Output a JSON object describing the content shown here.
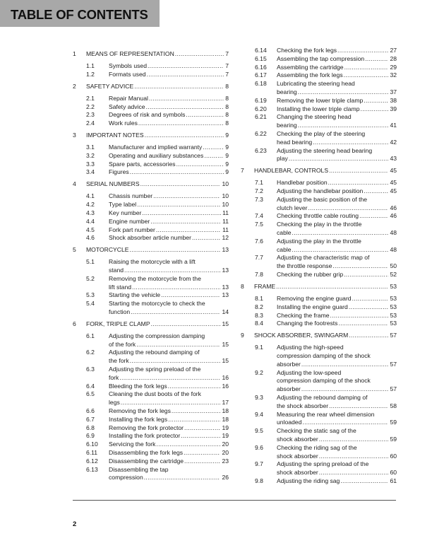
{
  "header": {
    "title": "TABLE OF CONTENTS",
    "background": "#a8a8a8"
  },
  "columns": [
    [
      {
        "level": "ch",
        "num": "1",
        "lines": [
          "MEANS OF REPRESENTATION"
        ],
        "page": "7"
      },
      {
        "level": "sec",
        "num": "1.1",
        "lines": [
          "Symbols used"
        ],
        "page": "7"
      },
      {
        "level": "sec",
        "num": "1.2",
        "lines": [
          "Formats used"
        ],
        "page": "7"
      },
      {
        "level": "ch",
        "num": "2",
        "lines": [
          "SAFETY ADVICE"
        ],
        "page": "8"
      },
      {
        "level": "sec",
        "num": "2.1",
        "lines": [
          "Repair Manual"
        ],
        "page": "8"
      },
      {
        "level": "sec",
        "num": "2.2",
        "lines": [
          "Safety advice"
        ],
        "page": "8"
      },
      {
        "level": "sec",
        "num": "2.3",
        "lines": [
          "Degrees of risk and symbols"
        ],
        "page": "8"
      },
      {
        "level": "sec",
        "num": "2.4",
        "lines": [
          "Work rules"
        ],
        "page": "8"
      },
      {
        "level": "ch",
        "num": "3",
        "lines": [
          "IMPORTANT NOTES"
        ],
        "page": "9"
      },
      {
        "level": "sec",
        "num": "3.1",
        "lines": [
          "Manufacturer and implied warranty"
        ],
        "page": "9"
      },
      {
        "level": "sec",
        "num": "3.2",
        "lines": [
          "Operating and auxiliary substances"
        ],
        "page": "9"
      },
      {
        "level": "sec",
        "num": "3.3",
        "lines": [
          "Spare parts, accessories"
        ],
        "page": "9"
      },
      {
        "level": "sec",
        "num": "3.4",
        "lines": [
          "Figures"
        ],
        "page": "9"
      },
      {
        "level": "ch",
        "num": "4",
        "lines": [
          "SERIAL NUMBERS"
        ],
        "page": "10"
      },
      {
        "level": "sec",
        "num": "4.1",
        "lines": [
          "Chassis number"
        ],
        "page": "10"
      },
      {
        "level": "sec",
        "num": "4.2",
        "lines": [
          "Type label"
        ],
        "page": "10"
      },
      {
        "level": "sec",
        "num": "4.3",
        "lines": [
          "Key number"
        ],
        "page": "11"
      },
      {
        "level": "sec",
        "num": "4.4",
        "lines": [
          "Engine number"
        ],
        "page": "11"
      },
      {
        "level": "sec",
        "num": "4.5",
        "lines": [
          "Fork part number"
        ],
        "page": "11"
      },
      {
        "level": "sec",
        "num": "4.6",
        "lines": [
          "Shock absorber article number"
        ],
        "page": "12"
      },
      {
        "level": "ch",
        "num": "5",
        "lines": [
          "MOTORCYCLE"
        ],
        "page": "13"
      },
      {
        "level": "sec",
        "num": "5.1",
        "lines": [
          "Raising the motorcycle with a lift",
          "stand"
        ],
        "page": "13"
      },
      {
        "level": "sec",
        "num": "5.2",
        "lines": [
          "Removing the motorcycle from the",
          "lift stand"
        ],
        "page": "13"
      },
      {
        "level": "sec",
        "num": "5.3",
        "lines": [
          "Starting the vehicle"
        ],
        "page": "13"
      },
      {
        "level": "sec",
        "num": "5.4",
        "lines": [
          "Starting the motorcycle to check the",
          "function"
        ],
        "page": "14"
      },
      {
        "level": "ch",
        "num": "6",
        "lines": [
          "FORK, TRIPLE CLAMP"
        ],
        "page": "15"
      },
      {
        "level": "sec",
        "num": "6.1",
        "lines": [
          "Adjusting the compression damping",
          "of the fork"
        ],
        "page": "15"
      },
      {
        "level": "sec",
        "num": "6.2",
        "lines": [
          "Adjusting the rebound damping of",
          "the fork"
        ],
        "page": "15"
      },
      {
        "level": "sec",
        "num": "6.3",
        "lines": [
          "Adjusting the spring preload of the",
          "fork"
        ],
        "page": "16"
      },
      {
        "level": "sec",
        "num": "6.4",
        "lines": [
          "Bleeding the fork legs"
        ],
        "page": "16"
      },
      {
        "level": "sec",
        "num": "6.5",
        "lines": [
          "Cleaning the dust boots of the fork",
          "legs"
        ],
        "page": "17"
      },
      {
        "level": "sec",
        "num": "6.6",
        "lines": [
          "Removing the fork legs"
        ],
        "page": "18"
      },
      {
        "level": "sec",
        "num": "6.7",
        "lines": [
          "Installing the fork legs"
        ],
        "page": "18"
      },
      {
        "level": "sec",
        "num": "6.8",
        "lines": [
          "Removing the fork protector"
        ],
        "page": "19"
      },
      {
        "level": "sec",
        "num": "6.9",
        "lines": [
          "Installing the fork protector"
        ],
        "page": "19"
      },
      {
        "level": "sec",
        "num": "6.10",
        "lines": [
          "Servicing the fork"
        ],
        "page": "20"
      },
      {
        "level": "sec",
        "num": "6.11",
        "lines": [
          "Disassembling the fork legs"
        ],
        "page": "20"
      },
      {
        "level": "sec",
        "num": "6.12",
        "lines": [
          "Disassembling the cartridge"
        ],
        "page": "23"
      },
      {
        "level": "sec",
        "num": "6.13",
        "lines": [
          "Disassembling the tap",
          "compression"
        ],
        "page": "26"
      }
    ],
    [
      {
        "level": "sec",
        "num": "6.14",
        "lines": [
          "Checking the fork legs"
        ],
        "page": "27"
      },
      {
        "level": "sec",
        "num": "6.15",
        "lines": [
          "Assembling the tap compression"
        ],
        "page": "28"
      },
      {
        "level": "sec",
        "num": "6.16",
        "lines": [
          "Assembling the cartridge"
        ],
        "page": "29"
      },
      {
        "level": "sec",
        "num": "6.17",
        "lines": [
          "Assembling the fork legs"
        ],
        "page": "32"
      },
      {
        "level": "sec",
        "num": "6.18",
        "lines": [
          "Lubricating the steering head",
          "bearing"
        ],
        "page": "37"
      },
      {
        "level": "sec",
        "num": "6.19",
        "lines": [
          "Removing the lower triple clamp"
        ],
        "page": "38"
      },
      {
        "level": "sec",
        "num": "6.20",
        "lines": [
          "Installing the lower triple clamp"
        ],
        "page": "39"
      },
      {
        "level": "sec",
        "num": "6.21",
        "lines": [
          "Changing the steering head",
          "bearing"
        ],
        "page": "41"
      },
      {
        "level": "sec",
        "num": "6.22",
        "lines": [
          "Checking the play of the steering",
          "head bearing"
        ],
        "page": "42"
      },
      {
        "level": "sec",
        "num": "6.23",
        "lines": [
          "Adjusting the steering head bearing",
          "play"
        ],
        "page": "43"
      },
      {
        "level": "ch",
        "num": "7",
        "lines": [
          "HANDLEBAR, CONTROLS"
        ],
        "page": "45"
      },
      {
        "level": "sec",
        "num": "7.1",
        "lines": [
          "Handlebar position"
        ],
        "page": "45"
      },
      {
        "level": "sec",
        "num": "7.2",
        "lines": [
          "Adjusting the handlebar position"
        ],
        "page": "45"
      },
      {
        "level": "sec",
        "num": "7.3",
        "lines": [
          "Adjusting the basic position of the",
          "clutch lever"
        ],
        "page": "46"
      },
      {
        "level": "sec",
        "num": "7.4",
        "lines": [
          "Checking throttle cable routing"
        ],
        "page": "46"
      },
      {
        "level": "sec",
        "num": "7.5",
        "lines": [
          "Checking the play in the throttle",
          "cable"
        ],
        "page": "48"
      },
      {
        "level": "sec",
        "num": "7.6",
        "lines": [
          "Adjusting the play in the throttle",
          "cable"
        ],
        "page": "48"
      },
      {
        "level": "sec",
        "num": "7.7",
        "lines": [
          "Adjusting the characteristic map of",
          "the throttle response"
        ],
        "page": "50"
      },
      {
        "level": "sec",
        "num": "7.8",
        "lines": [
          "Checking the rubber grip"
        ],
        "page": "52"
      },
      {
        "level": "ch",
        "num": "8",
        "lines": [
          "FRAME"
        ],
        "page": "53"
      },
      {
        "level": "sec",
        "num": "8.1",
        "lines": [
          "Removing the engine guard"
        ],
        "page": "53"
      },
      {
        "level": "sec",
        "num": "8.2",
        "lines": [
          "Installing the engine guard"
        ],
        "page": "53"
      },
      {
        "level": "sec",
        "num": "8.3",
        "lines": [
          "Checking the frame"
        ],
        "page": "53"
      },
      {
        "level": "sec",
        "num": "8.4",
        "lines": [
          "Changing the footrests"
        ],
        "page": "53"
      },
      {
        "level": "ch",
        "num": "9",
        "lines": [
          "SHOCK ABSORBER, SWINGARM"
        ],
        "page": "57"
      },
      {
        "level": "sec",
        "num": "9.1",
        "lines": [
          "Adjusting the high-speed",
          "compression damping of the shock",
          "absorber"
        ],
        "page": "57"
      },
      {
        "level": "sec",
        "num": "9.2",
        "lines": [
          "Adjusting the low-speed",
          "compression damping of the shock",
          "absorber"
        ],
        "page": "57"
      },
      {
        "level": "sec",
        "num": "9.3",
        "lines": [
          "Adjusting the rebound damping of",
          "the shock absorber"
        ],
        "page": "58"
      },
      {
        "level": "sec",
        "num": "9.4",
        "lines": [
          "Measuring the rear wheel dimension",
          "unloaded"
        ],
        "page": "59"
      },
      {
        "level": "sec",
        "num": "9.5",
        "lines": [
          "Checking the static sag of the",
          "shock absorber"
        ],
        "page": "59"
      },
      {
        "level": "sec",
        "num": "9.6",
        "lines": [
          "Checking the riding sag of the",
          "shock absorber"
        ],
        "page": "60"
      },
      {
        "level": "sec",
        "num": "9.7",
        "lines": [
          "Adjusting the spring preload of the",
          "shock absorber"
        ],
        "page": "60"
      },
      {
        "level": "sec",
        "num": "9.8",
        "lines": [
          "Adjusting the riding sag"
        ],
        "page": "61"
      }
    ]
  ],
  "footer": {
    "page_number": "2"
  }
}
